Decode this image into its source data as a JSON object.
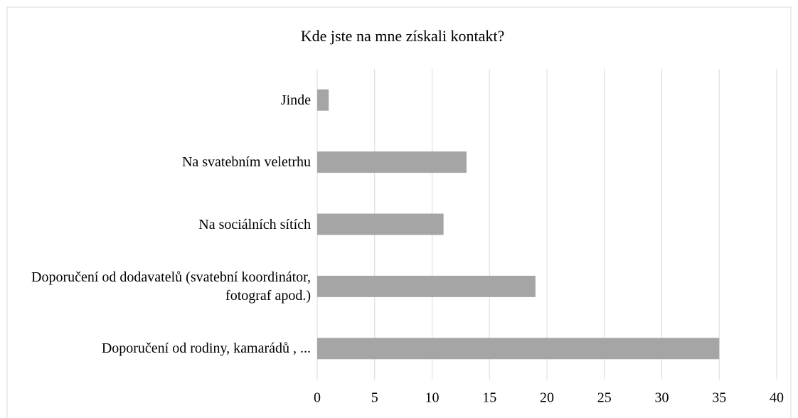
{
  "chart_data": {
    "type": "barh",
    "title": "Kde jste na mne získali kontakt?",
    "categories": [
      "Jinde",
      "Na svatebním veletrhu",
      "Na sociálních sítích",
      "Doporučení od dodavatelů (svatební koordinátor, fotograf apod.)",
      "Doporučení od rodiny, kamarádů , ..."
    ],
    "values": [
      1,
      13,
      11,
      19,
      35
    ],
    "color": "#a5a5a5",
    "xlim": [
      0,
      40
    ],
    "xticks": [
      0,
      5,
      10,
      15,
      20,
      25,
      30,
      35,
      40
    ],
    "grid": true
  }
}
